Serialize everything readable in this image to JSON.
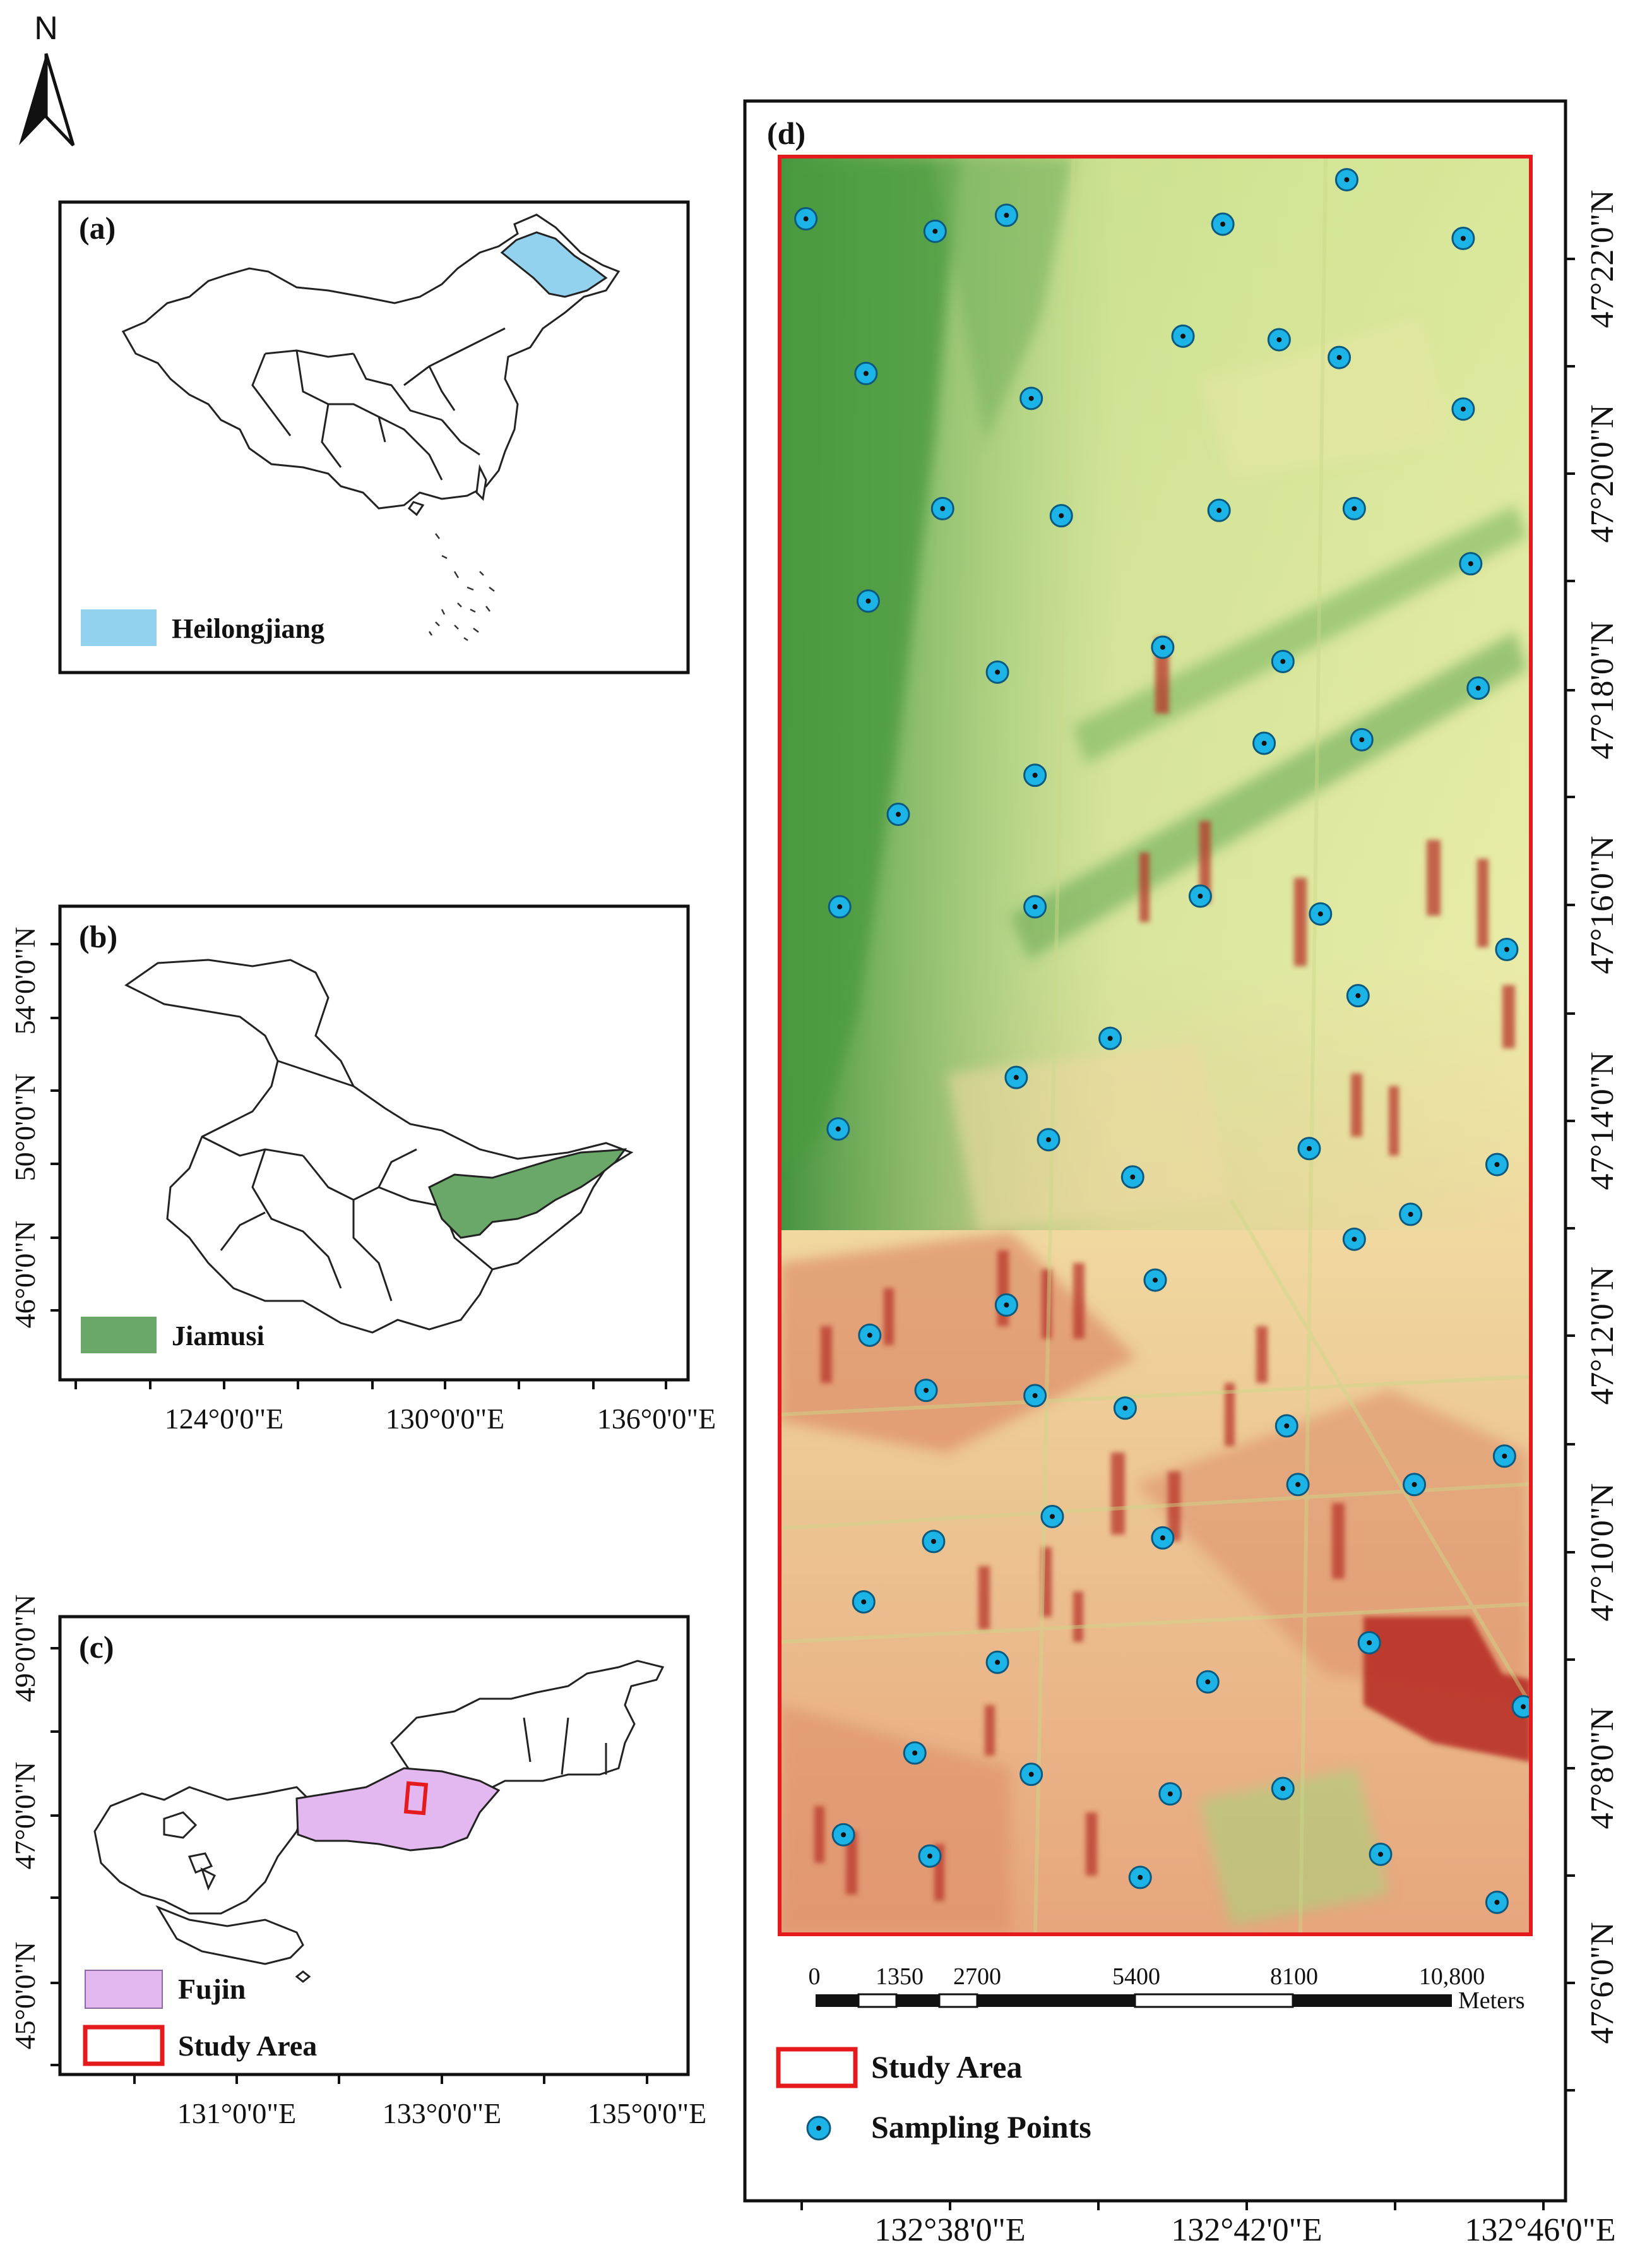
{
  "north_arrow": {
    "label": "N"
  },
  "panel_a": {
    "label": "(a)",
    "legend": {
      "label": "Heilongjiang",
      "color": "#92d2ee"
    }
  },
  "panel_b": {
    "label": "(b)",
    "legend": {
      "label": "Jiamusi",
      "color": "#6aa86a"
    },
    "lat_ticks": [
      "54°0'0\"N",
      "50°0'0\"N",
      "46°0'0\"N"
    ],
    "lon_ticks": [
      "124°0'0\"E",
      "130°0'0\"E",
      "136°0'0\"E"
    ]
  },
  "panel_c": {
    "label": "(c)",
    "legend": [
      {
        "label": "Fujin",
        "color": "#e3b8f0"
      },
      {
        "label": "Study Area",
        "color": "#e41a1c"
      }
    ],
    "lat_ticks": [
      "49°0'0\"N",
      "47°0'0\"N",
      "45°0'0\"N"
    ],
    "lon_ticks": [
      "131°0'0\"E",
      "133°0'0\"E",
      "135°0'0\"E"
    ]
  },
  "panel_d": {
    "label": "(d)",
    "lat_ticks": [
      "47°22'0\"N",
      "47°20'0\"N",
      "47°18'0\"N",
      "47°16'0\"N",
      "47°14'0\"N",
      "47°12'0\"N",
      "47°10'0\"N",
      "47°8'0\"N",
      "47°6'0\"N"
    ],
    "lon_ticks": [
      "132°38'0\"E",
      "132°42'0\"E",
      "132°46'0\"E"
    ],
    "scale_bar": {
      "ticks": [
        "0",
        "1350",
        "2700",
        "5400",
        "8100",
        "10,800"
      ],
      "unit": "Meters"
    },
    "legend": [
      {
        "label": "Study Area",
        "color": "#e41a1c"
      },
      {
        "label": "Sampling Points",
        "color": "#1cb4e6"
      }
    ],
    "raster_colors": {
      "low": "#2e8b2e",
      "mid": "#f2f0b0",
      "high": "#b22222"
    },
    "sampling_points": [
      [
        0.035,
        0.035
      ],
      [
        0.207,
        0.042
      ],
      [
        0.302,
        0.033
      ],
      [
        0.59,
        0.038
      ],
      [
        0.755,
        0.013
      ],
      [
        0.91,
        0.046
      ],
      [
        0.537,
        0.101
      ],
      [
        0.665,
        0.103
      ],
      [
        0.745,
        0.113
      ],
      [
        0.115,
        0.122
      ],
      [
        0.335,
        0.136
      ],
      [
        0.91,
        0.142
      ],
      [
        0.217,
        0.198
      ],
      [
        0.375,
        0.202
      ],
      [
        0.585,
        0.199
      ],
      [
        0.765,
        0.198
      ],
      [
        0.92,
        0.229
      ],
      [
        0.118,
        0.25
      ],
      [
        0.51,
        0.276
      ],
      [
        0.67,
        0.284
      ],
      [
        0.29,
        0.29
      ],
      [
        0.93,
        0.299
      ],
      [
        0.645,
        0.33
      ],
      [
        0.775,
        0.328
      ],
      [
        0.34,
        0.348
      ],
      [
        0.158,
        0.37
      ],
      [
        0.08,
        0.422
      ],
      [
        0.34,
        0.422
      ],
      [
        0.56,
        0.416
      ],
      [
        0.72,
        0.426
      ],
      [
        0.968,
        0.446
      ],
      [
        0.77,
        0.472
      ],
      [
        0.44,
        0.496
      ],
      [
        0.315,
        0.518
      ],
      [
        0.078,
        0.547
      ],
      [
        0.358,
        0.553
      ],
      [
        0.705,
        0.558
      ],
      [
        0.955,
        0.567
      ],
      [
        0.47,
        0.574
      ],
      [
        0.84,
        0.595
      ],
      [
        0.765,
        0.609
      ],
      [
        0.5,
        0.632
      ],
      [
        0.302,
        0.646
      ],
      [
        0.12,
        0.663
      ],
      [
        0.195,
        0.694
      ],
      [
        0.34,
        0.697
      ],
      [
        0.46,
        0.704
      ],
      [
        0.675,
        0.714
      ],
      [
        0.965,
        0.731
      ],
      [
        0.69,
        0.747
      ],
      [
        0.845,
        0.747
      ],
      [
        0.363,
        0.765
      ],
      [
        0.205,
        0.779
      ],
      [
        0.51,
        0.777
      ],
      [
        0.112,
        0.813
      ],
      [
        0.785,
        0.836
      ],
      [
        0.29,
        0.847
      ],
      [
        0.57,
        0.858
      ],
      [
        0.99,
        0.872
      ],
      [
        0.18,
        0.898
      ],
      [
        0.335,
        0.91
      ],
      [
        0.52,
        0.921
      ],
      [
        0.67,
        0.918
      ],
      [
        0.085,
        0.944
      ],
      [
        0.2,
        0.956
      ],
      [
        0.8,
        0.955
      ],
      [
        0.48,
        0.968
      ],
      [
        0.955,
        0.982
      ]
    ]
  }
}
